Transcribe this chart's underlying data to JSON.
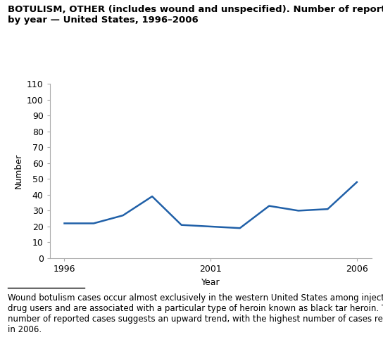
{
  "years": [
    1996,
    1997,
    1998,
    1999,
    2000,
    2001,
    2002,
    2003,
    2004,
    2005,
    2006
  ],
  "values": [
    22,
    22,
    27,
    39,
    21,
    20,
    19,
    33,
    30,
    31,
    48
  ],
  "line_color": "#2060a8",
  "line_width": 1.8,
  "title_line1": "BOTULISM, OTHER (includes wound and unspecified). Number of reported cases,",
  "title_line2": "by year — United States, 1996–2006",
  "xlabel": "Year",
  "ylabel": "Number",
  "ylim": [
    0,
    110
  ],
  "yticks": [
    0,
    10,
    20,
    30,
    40,
    50,
    60,
    70,
    80,
    90,
    100,
    110
  ],
  "xtick_positions": [
    1996,
    2001,
    2006
  ],
  "xlim": [
    1995.5,
    2006.5
  ],
  "footnote_line1": "Wound botulism cases occur almost exclusively in the western United States among injection-",
  "footnote_line2": "drug users and are associated with a particular type of heroin known as black tar heroin. The",
  "footnote_line3": "number of reported cases suggests an upward trend, with the highest number of cases reported",
  "footnote_line4": "in 2006.",
  "background_color": "#ffffff",
  "title_fontsize": 9.5,
  "axis_label_fontsize": 9,
  "tick_fontsize": 9,
  "footnote_fontsize": 8.5,
  "spine_color": "#aaaaaa"
}
